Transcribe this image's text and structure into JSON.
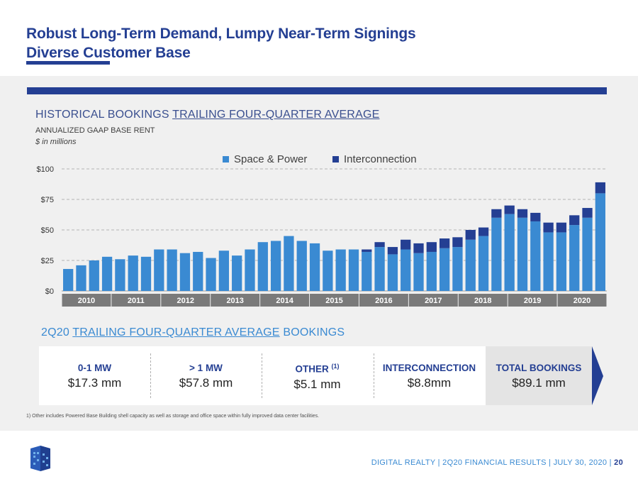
{
  "header": {
    "title_line1": "Robust Long-Term Demand, Lumpy Near-Term Signings",
    "title_line2": "Diverse Customer Base"
  },
  "section": {
    "heading_prefix": "HISTORICAL BOOKINGS ",
    "heading_underlined": "TRAILING FOUR-QUARTER AVERAGE",
    "subtitle1": "ANNUALIZED GAAP BASE RENT",
    "subtitle2": "$ in millions"
  },
  "colors": {
    "space_power": "#3a8ad2",
    "interconnection": "#243f93",
    "year_band": "#7a7a7a"
  },
  "chart_data": {
    "type": "bar",
    "stacked": true,
    "yticks": [
      0,
      25,
      50,
      75,
      100
    ],
    "ytick_labels": [
      "$0",
      "$25",
      "$50",
      "$75",
      "$100"
    ],
    "ylim": [
      0,
      100
    ],
    "grid": true,
    "legend_position": "top-center",
    "years": [
      "2010",
      "2011",
      "2012",
      "2013",
      "2014",
      "2015",
      "2016",
      "2017",
      "2018",
      "2019",
      "2020"
    ],
    "series": [
      {
        "name": "Space & Power",
        "values": [
          18,
          21,
          25,
          28,
          26,
          29,
          28,
          34,
          34,
          31,
          32,
          27,
          33,
          29,
          34,
          40,
          41,
          45,
          41,
          39,
          33,
          34,
          34,
          32,
          36,
          30,
          34,
          31,
          32,
          35,
          36,
          42,
          45,
          60,
          63,
          60,
          57,
          48,
          48,
          54,
          60,
          80
        ]
      },
      {
        "name": "Interconnection",
        "values": [
          0,
          0,
          0,
          0,
          0,
          0,
          0,
          0,
          0,
          0,
          0,
          0,
          0,
          0,
          0,
          0,
          0,
          0,
          0,
          0,
          0,
          0,
          0,
          2,
          4,
          6,
          8,
          8,
          8,
          8,
          8,
          8,
          7,
          7,
          7,
          7,
          7,
          8,
          8,
          8,
          8,
          9
        ]
      }
    ]
  },
  "bookings": {
    "heading_prefix": "2Q20 ",
    "heading_underlined": "TRAILING FOUR-QUARTER AVERAGE",
    "heading_suffix": " BOOKINGS",
    "cards": [
      {
        "label": "0-1 MW",
        "sup": "",
        "value": "$17.3 mm"
      },
      {
        "label": "> 1 MW",
        "sup": "",
        "value": "$57.8 mm"
      },
      {
        "label": "OTHER ",
        "sup": "(1)",
        "value": "$5.1 mm"
      },
      {
        "label": "INTERCONNECTION",
        "sup": "",
        "value": "$8.8mm"
      }
    ],
    "total": {
      "label": "TOTAL BOOKINGS",
      "value": "$89.1 mm"
    }
  },
  "footnote": "1)  Other includes Powered Base Building shell capacity as well as storage and office space within fully improved data center facilities.",
  "footer": {
    "text": "DIGITAL REALTY | 2Q20 FINANCIAL RESULTS | JULY 30, 2020  |  ",
    "page": "20"
  },
  "logo_icon": "digital-realty-logo-icon"
}
